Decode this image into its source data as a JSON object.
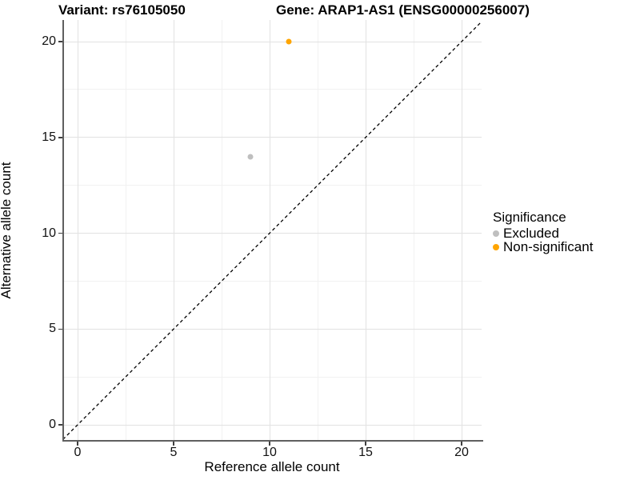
{
  "titles": {
    "variant": "Variant: rs76105050",
    "gene": "Gene: ARAP1-AS1 (ENSG00000256007)"
  },
  "chart_data": {
    "type": "scatter",
    "title": "Variant: rs76105050 — Gene: ARAP1-AS1 (ENSG00000256007)",
    "xlabel": "Reference allele count",
    "ylabel": "Alternative allele count",
    "xlim": [
      -0.8,
      21.1
    ],
    "ylim": [
      -0.8,
      21.1
    ],
    "xticks": [
      0,
      5,
      10,
      15,
      20
    ],
    "yticks": [
      0,
      5,
      10,
      15,
      20
    ],
    "minor_xticks": [
      2.5,
      7.5,
      12.5,
      17.5
    ],
    "minor_yticks": [
      2.5,
      7.5,
      12.5,
      17.5
    ],
    "grid": "major-and-minor",
    "identity_line": {
      "equation": "y = x",
      "style": "dashed",
      "color": "#000000"
    },
    "series": [
      {
        "name": "Excluded",
        "color": "#bfbfbf",
        "points": [
          {
            "x": 9,
            "y": 14
          }
        ]
      },
      {
        "name": "Non-significant",
        "color": "#ffa500",
        "points": [
          {
            "x": 11,
            "y": 20
          }
        ]
      }
    ],
    "legend": {
      "title": "Significance",
      "position": "right"
    }
  },
  "colors": {
    "axis_line": "#5f5f5f",
    "grid_major": "#e2e2e2",
    "grid_minor": "#f1f1f1",
    "background": "#ffffff"
  }
}
